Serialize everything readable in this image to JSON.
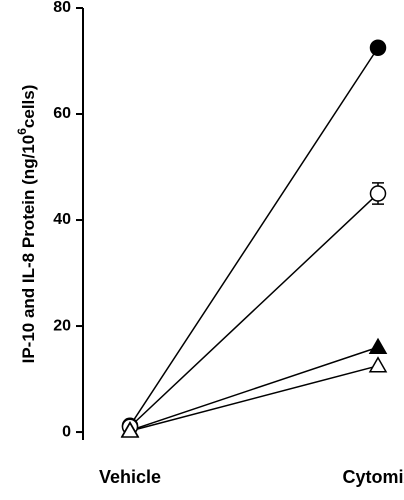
{
  "chart_data": {
    "type": "line",
    "ylabel": {
      "text": "IP-10 and IL-8 Protein (ng/10",
      "sup": "6",
      "tail": "cells)"
    },
    "categories": [
      "Vehicle",
      "Cytomix"
    ],
    "series": [
      {
        "color": "#000000",
        "marker": "circle",
        "filled": true,
        "values": [
          1.2,
          72.5
        ]
      },
      {
        "color": "#000000",
        "marker": "circle",
        "filled": false,
        "values": [
          1.0,
          45
        ],
        "errors": [
          null,
          2
        ]
      },
      {
        "color": "#000000",
        "marker": "triangle",
        "filled": true,
        "values": [
          0.3,
          16
        ]
      },
      {
        "color": "#000000",
        "marker": "triangle",
        "filled": false,
        "values": [
          0.2,
          12.5
        ]
      }
    ],
    "ylim": [
      -1.5,
      80
    ],
    "yticks": [
      0,
      20,
      40,
      60,
      80
    ],
    "grid": false
  }
}
